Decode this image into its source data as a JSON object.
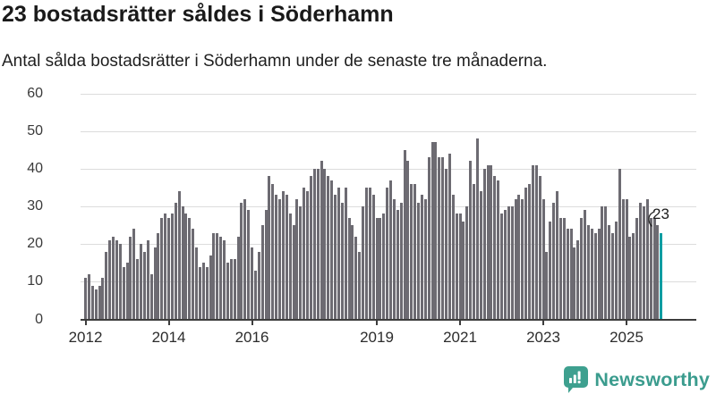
{
  "header": {
    "title": "23 bostadsrätter såldes i Söderhamn",
    "subtitle": "Antal sålda bostadsrätter i Söderhamn under de senaste tre månaderna."
  },
  "chart_data": {
    "type": "bar",
    "title": "23 bostadsrätter såldes i Söderhamn",
    "ylabel": "",
    "xlabel": "",
    "ylim": [
      0,
      60
    ],
    "y_ticks": [
      0,
      10,
      20,
      30,
      40,
      50,
      60
    ],
    "grid": "horizontal",
    "legend": "none",
    "start_month": "2012-01",
    "end_month": "2025-11",
    "x_tick_labels": [
      "2012",
      "2014",
      "2016",
      "2019",
      "2021",
      "2023",
      "2025"
    ],
    "x_tick_month_index": [
      0,
      24,
      48,
      84,
      108,
      132,
      156
    ],
    "values": [
      11,
      12,
      9,
      8,
      9,
      11,
      18,
      21,
      22,
      21,
      20,
      14,
      15,
      22,
      24,
      16,
      20,
      18,
      21,
      12,
      19,
      23,
      27,
      28,
      27,
      28,
      31,
      34,
      30,
      28,
      27,
      24,
      19,
      14,
      15,
      14,
      17,
      23,
      23,
      22,
      21,
      15,
      16,
      16,
      22,
      31,
      32,
      29,
      19,
      13,
      18,
      25,
      29,
      38,
      36,
      33,
      32,
      34,
      33,
      28,
      25,
      32,
      30,
      35,
      34,
      38,
      40,
      40,
      42,
      40,
      38,
      37,
      33,
      35,
      31,
      35,
      27,
      25,
      22,
      18,
      30,
      35,
      35,
      33,
      27,
      27,
      28,
      35,
      37,
      32,
      29,
      31,
      45,
      42,
      36,
      36,
      31,
      33,
      32,
      43,
      47,
      47,
      43,
      43,
      40,
      44,
      33,
      28,
      28,
      26,
      30,
      42,
      36,
      48,
      34,
      40,
      41,
      41,
      38,
      37,
      28,
      29,
      30,
      30,
      32,
      33,
      32,
      35,
      36,
      41,
      41,
      38,
      32,
      18,
      26,
      31,
      34,
      27,
      27,
      24,
      24,
      19,
      21,
      27,
      29,
      25,
      24,
      23,
      24,
      30,
      30,
      25,
      23,
      26,
      40,
      32,
      32,
      22,
      23,
      27,
      31,
      30,
      32,
      27,
      27,
      25,
      23
    ],
    "bar_color": "#6d6b72",
    "highlight": {
      "index": 166,
      "value": 23,
      "label": "23",
      "color": "#0a9da2"
    }
  },
  "branding": {
    "wordmark": "Newsworthy",
    "logo_icon": "speech-bubble-bar-chart",
    "brand_color": "#3b9c8e"
  },
  "colors": {
    "background": "#ffffff",
    "gridline": "#dcdcdc",
    "axis": "#3d3d3d",
    "text": "#1a1a1a"
  }
}
